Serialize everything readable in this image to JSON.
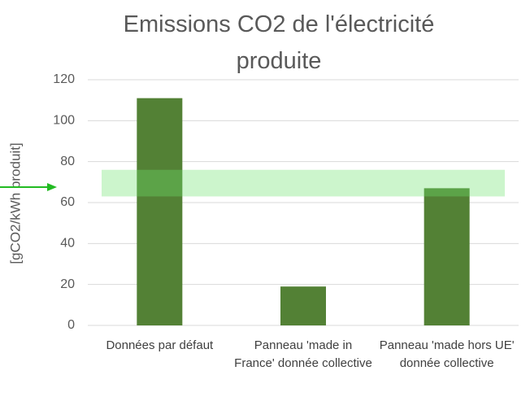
{
  "chart_data": {
    "type": "bar",
    "title": "Emissions CO2 de l'électricité produite",
    "y_label": "[gCO2/kWh produit]",
    "categories": [
      "Données par défaut",
      "Panneau 'made in France' donnée collective",
      "Panneau 'made hors UE'  donnée collective"
    ],
    "values": [
      111,
      19,
      67
    ],
    "color": "#538135",
    "band": [
      63,
      76
    ],
    "band_color": "rgba(110,225,110,0.35)",
    "ylim": [
      0,
      120
    ],
    "yticks": [
      0,
      20,
      40,
      60,
      80,
      100,
      120
    ],
    "grid": true
  }
}
